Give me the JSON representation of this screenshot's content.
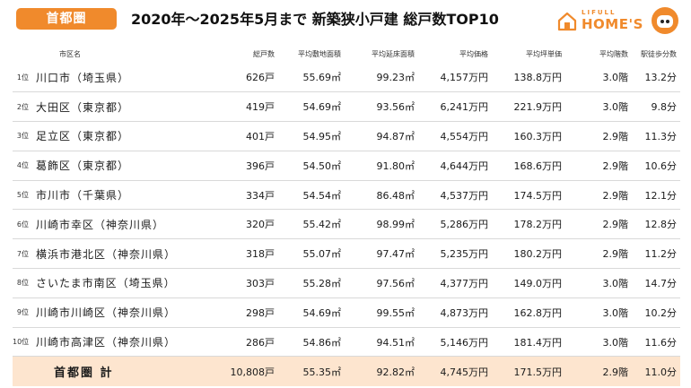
{
  "header": {
    "region_badge": "首都圏",
    "title": "2020年～2025年5月まで 新築狭小戸建 総戸数TOP10",
    "logo_top": "LIFULL",
    "logo_main": "HOME'S"
  },
  "columns": {
    "name": "市区名",
    "units": "総戸数",
    "land_area": "平均敷地面積",
    "floor_area": "平均延床面積",
    "price": "平均価格",
    "tsubo_price": "平均坪単価",
    "stories": "平均階数",
    "walk": "駅徒歩分数"
  },
  "rows": [
    {
      "rank": "1位",
      "name": "川口市（埼玉県）",
      "units": "626戸",
      "land_area": "55.69㎡",
      "floor_area": "99.23㎡",
      "price": "4,157万円",
      "tsubo_price": "138.8万円",
      "stories": "3.0階",
      "walk": "13.2分"
    },
    {
      "rank": "2位",
      "name": "大田区（東京都）",
      "units": "419戸",
      "land_area": "54.69㎡",
      "floor_area": "93.56㎡",
      "price": "6,241万円",
      "tsubo_price": "221.9万円",
      "stories": "3.0階",
      "walk": "9.8分"
    },
    {
      "rank": "3位",
      "name": "足立区（東京都）",
      "units": "401戸",
      "land_area": "54.95㎡",
      "floor_area": "94.87㎡",
      "price": "4,554万円",
      "tsubo_price": "160.3万円",
      "stories": "2.9階",
      "walk": "11.3分"
    },
    {
      "rank": "4位",
      "name": "葛飾区（東京都）",
      "units": "396戸",
      "land_area": "54.50㎡",
      "floor_area": "91.80㎡",
      "price": "4,644万円",
      "tsubo_price": "168.6万円",
      "stories": "2.9階",
      "walk": "10.6分"
    },
    {
      "rank": "5位",
      "name": "市川市（千葉県）",
      "units": "334戸",
      "land_area": "54.54㎡",
      "floor_area": "86.48㎡",
      "price": "4,537万円",
      "tsubo_price": "174.5万円",
      "stories": "2.9階",
      "walk": "12.1分"
    },
    {
      "rank": "6位",
      "name": "川崎市幸区（神奈川県）",
      "units": "320戸",
      "land_area": "55.42㎡",
      "floor_area": "98.99㎡",
      "price": "5,286万円",
      "tsubo_price": "178.2万円",
      "stories": "2.9階",
      "walk": "12.8分"
    },
    {
      "rank": "7位",
      "name": "横浜市港北区（神奈川県）",
      "units": "318戸",
      "land_area": "55.07㎡",
      "floor_area": "97.47㎡",
      "price": "5,235万円",
      "tsubo_price": "180.2万円",
      "stories": "2.9階",
      "walk": "11.2分"
    },
    {
      "rank": "8位",
      "name": "さいたま市南区（埼玉県）",
      "units": "303戸",
      "land_area": "55.28㎡",
      "floor_area": "97.56㎡",
      "price": "4,377万円",
      "tsubo_price": "149.0万円",
      "stories": "3.0階",
      "walk": "14.7分"
    },
    {
      "rank": "9位",
      "name": "川崎市川崎区（神奈川県）",
      "units": "298戸",
      "land_area": "54.69㎡",
      "floor_area": "99.55㎡",
      "price": "4,873万円",
      "tsubo_price": "162.8万円",
      "stories": "3.0階",
      "walk": "10.2分"
    },
    {
      "rank": "10位",
      "name": "川崎市高津区（神奈川県）",
      "units": "286戸",
      "land_area": "54.86㎡",
      "floor_area": "94.51㎡",
      "price": "5,146万円",
      "tsubo_price": "181.4万円",
      "stories": "3.0階",
      "walk": "11.6分"
    }
  ],
  "total": {
    "name": "首都圏 計",
    "units": "10,808戸",
    "land_area": "55.35㎡",
    "floor_area": "92.82㎡",
    "price": "4,745万円",
    "tsubo_price": "171.5万円",
    "stories": "2.9階",
    "walk": "11.0分"
  },
  "colors": {
    "accent": "#f08a2c",
    "total_row_bg": "#fde5cf",
    "row_divider": "#d9d9d9"
  },
  "icons": {
    "logo_house": "house-icon",
    "logo_mascot": "mascot-icon"
  }
}
